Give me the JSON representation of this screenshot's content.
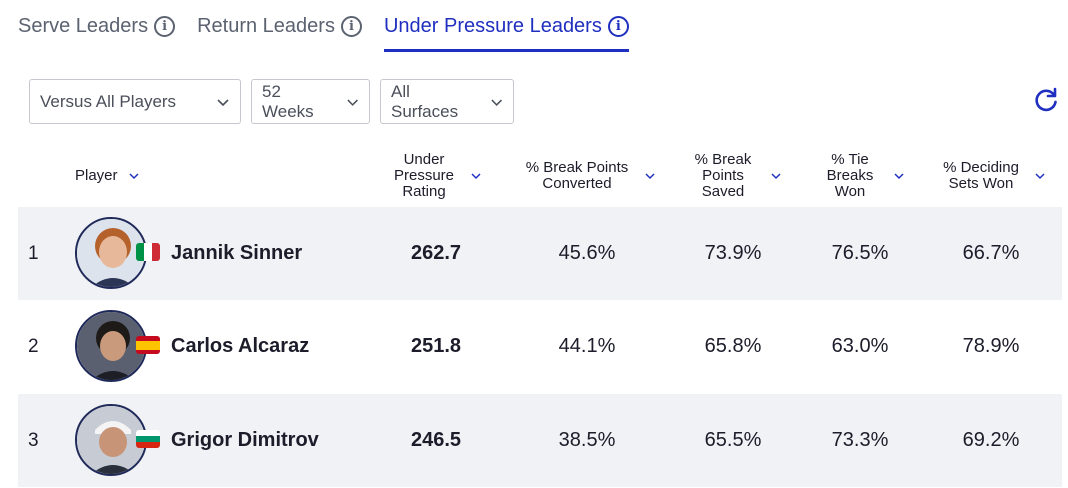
{
  "tabs": [
    {
      "label": "Serve Leaders",
      "active": false
    },
    {
      "label": "Return Leaders",
      "active": false
    },
    {
      "label": "Under Pressure Leaders",
      "active": true
    }
  ],
  "filters": {
    "opponent": "Versus All Players",
    "period": "52 Weeks",
    "surface": "All Surfaces"
  },
  "columns": {
    "player": "Player",
    "rating": "Under Pressure Rating",
    "bp_converted": "% Break Points Converted",
    "bp_saved": "% Break Points Saved",
    "tiebreaks": "% Tie Breaks Won",
    "deciding": "% Deciding Sets Won"
  },
  "rows": [
    {
      "rank": "1",
      "name": "Jannik Sinner",
      "flag": "Italy",
      "rating": "262.7",
      "bp_converted": "45.6%",
      "bp_saved": "73.9%",
      "tiebreaks": "76.5%",
      "deciding": "66.7%"
    },
    {
      "rank": "2",
      "name": "Carlos Alcaraz",
      "flag": "Spain",
      "rating": "251.8",
      "bp_converted": "44.1%",
      "bp_saved": "65.8%",
      "tiebreaks": "63.0%",
      "deciding": "78.9%"
    },
    {
      "rank": "3",
      "name": "Grigor Dimitrov",
      "flag": "Bulgaria",
      "rating": "246.5",
      "bp_converted": "38.5%",
      "bp_saved": "65.5%",
      "tiebreaks": "73.3%",
      "deciding": "69.2%"
    }
  ],
  "colors": {
    "accent": "#1f2fbf",
    "row_shade": "#f1f2f5"
  }
}
